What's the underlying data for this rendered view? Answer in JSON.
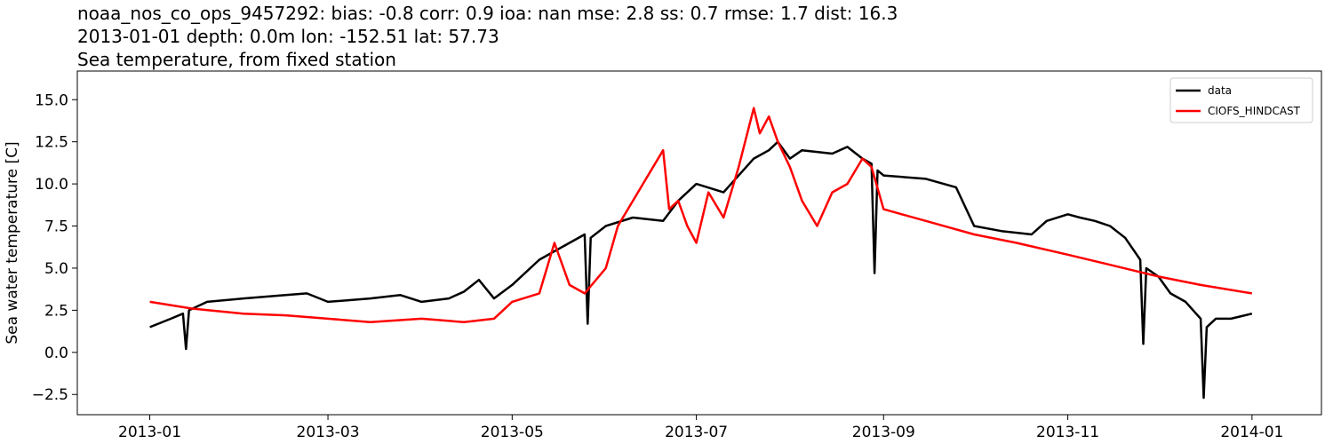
{
  "chart_data": {
    "type": "line",
    "title_lines": [
      "noaa_nos_co_ops_9457292: bias: -0.8  corr: 0.9  ioa: nan  mse: 2.8  ss: 0.7  rmse: 1.7  dist: 16.3",
      "2013-01-01 depth: 0.0m lon: -152.51 lat: 57.73",
      "Sea temperature, from fixed station"
    ],
    "xlabel": "",
    "ylabel": "Sea water temperature [C]",
    "xlim": [
      "2012-12-08",
      "2014-01-24"
    ],
    "ylim": [
      -3.7,
      16.7
    ],
    "x_ticks": [
      "2013-01",
      "2013-03",
      "2013-05",
      "2013-07",
      "2013-09",
      "2013-11",
      "2014-01"
    ],
    "y_ticks": [
      -2.5,
      0.0,
      2.5,
      5.0,
      7.5,
      10.0,
      12.5,
      15.0
    ],
    "y_tick_labels": [
      "−2.5",
      "0.0",
      "2.5",
      "5.0",
      "7.5",
      "10.0",
      "12.5",
      "15.0"
    ],
    "grid": false,
    "legend_position": "top-right",
    "series": [
      {
        "name": "data",
        "color": "#000000",
        "x": [
          "2013-01-01",
          "2013-01-08",
          "2013-01-12",
          "2013-01-13",
          "2013-01-14",
          "2013-01-20",
          "2013-02-01",
          "2013-02-15",
          "2013-02-22",
          "2013-03-01",
          "2013-03-15",
          "2013-03-25",
          "2013-04-01",
          "2013-04-10",
          "2013-04-15",
          "2013-04-20",
          "2013-04-25",
          "2013-05-01",
          "2013-05-10",
          "2013-05-20",
          "2013-05-25",
          "2013-05-26",
          "2013-05-27",
          "2013-06-01",
          "2013-06-10",
          "2013-06-20",
          "2013-06-25",
          "2013-07-01",
          "2013-07-10",
          "2013-07-15",
          "2013-07-20",
          "2013-07-25",
          "2013-07-28",
          "2013-08-01",
          "2013-08-05",
          "2013-08-15",
          "2013-08-20",
          "2013-08-25",
          "2013-08-28",
          "2013-08-29",
          "2013-08-30",
          "2013-09-01",
          "2013-09-15",
          "2013-09-25",
          "2013-10-01",
          "2013-10-10",
          "2013-10-20",
          "2013-10-25",
          "2013-11-01",
          "2013-11-05",
          "2013-11-10",
          "2013-11-15",
          "2013-11-20",
          "2013-11-25",
          "2013-11-26",
          "2013-11-27",
          "2013-12-01",
          "2013-12-05",
          "2013-12-10",
          "2013-12-15",
          "2013-12-16",
          "2013-12-17",
          "2013-12-20",
          "2013-12-25",
          "2014-01-01"
        ],
        "y": [
          1.5,
          2.0,
          2.3,
          0.2,
          2.5,
          3.0,
          3.2,
          3.4,
          3.5,
          3.0,
          3.2,
          3.4,
          3.0,
          3.2,
          3.6,
          4.3,
          3.2,
          4.0,
          5.5,
          6.5,
          7.0,
          1.7,
          6.8,
          7.5,
          8.0,
          7.8,
          9.0,
          10.0,
          9.5,
          10.5,
          11.5,
          12.0,
          12.5,
          11.5,
          12.0,
          11.8,
          12.2,
          11.5,
          11.2,
          4.7,
          10.8,
          10.5,
          10.3,
          9.8,
          7.5,
          7.2,
          7.0,
          7.8,
          8.2,
          8.0,
          7.8,
          7.5,
          6.8,
          5.5,
          0.5,
          5.0,
          4.5,
          3.5,
          3.0,
          2.0,
          -2.7,
          1.5,
          2.0,
          2.0,
          2.3
        ]
      },
      {
        "name": "CIOFS_HINDCAST",
        "color": "#ff0000",
        "x": [
          "2013-01-01",
          "2013-01-15",
          "2013-02-01",
          "2013-02-15",
          "2013-03-01",
          "2013-03-15",
          "2013-04-01",
          "2013-04-15",
          "2013-04-25",
          "2013-05-01",
          "2013-05-10",
          "2013-05-15",
          "2013-05-20",
          "2013-05-25",
          "2013-06-01",
          "2013-06-05",
          "2013-06-10",
          "2013-06-15",
          "2013-06-20",
          "2013-06-22",
          "2013-06-25",
          "2013-06-28",
          "2013-07-01",
          "2013-07-05",
          "2013-07-10",
          "2013-07-15",
          "2013-07-20",
          "2013-07-22",
          "2013-07-25",
          "2013-07-28",
          "2013-08-01",
          "2013-08-05",
          "2013-08-10",
          "2013-08-15",
          "2013-08-20",
          "2013-08-25",
          "2013-08-28",
          "2013-09-01",
          "2013-09-15",
          "2013-10-01",
          "2013-10-15",
          "2013-11-01",
          "2013-11-15",
          "2013-12-01",
          "2013-12-15",
          "2014-01-01"
        ],
        "y": [
          3.0,
          2.6,
          2.3,
          2.2,
          2.0,
          1.8,
          2.0,
          1.8,
          2.0,
          3.0,
          3.5,
          6.5,
          4.0,
          3.5,
          5.0,
          7.5,
          9.0,
          10.5,
          12.0,
          8.5,
          9.0,
          7.5,
          6.5,
          9.5,
          8.0,
          11.0,
          14.5,
          13.0,
          14.0,
          12.5,
          11.0,
          9.0,
          7.5,
          9.5,
          10.0,
          11.5,
          11.0,
          8.5,
          7.8,
          7.0,
          6.5,
          5.8,
          5.2,
          4.5,
          4.0,
          3.5
        ]
      }
    ]
  }
}
